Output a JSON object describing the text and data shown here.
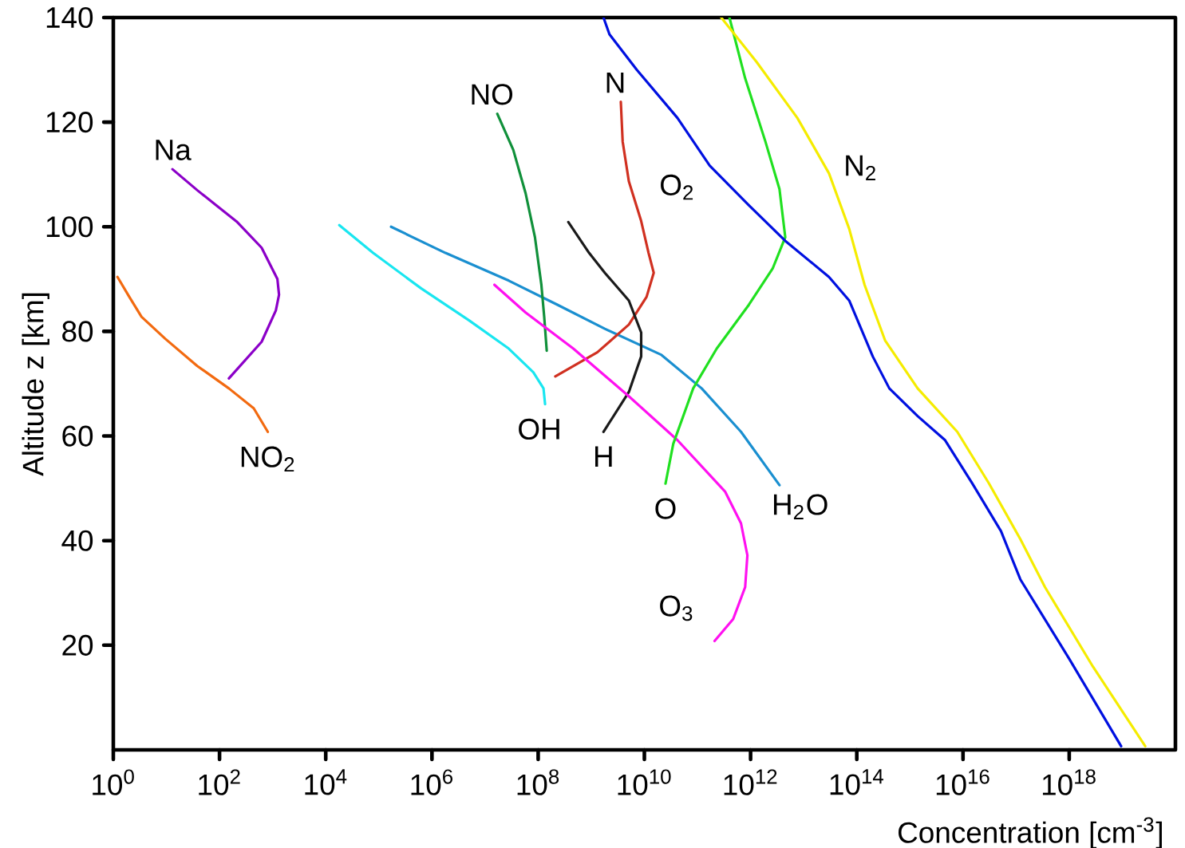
{
  "chart_data": {
    "type": "line",
    "xlabel": "Concentration [cm$^{-3}$]",
    "ylabel": "Altitude z [km]",
    "log": "x",
    "xlim": [
      1,
      1e+20
    ],
    "ylim": [
      0,
      140
    ],
    "xticks": [
      {
        "value": 1,
        "label": "10$^{0}$"
      },
      {
        "value": 100.0,
        "label": "10$^{2}$"
      },
      {
        "value": 10000.0,
        "label": "10$^{4}$"
      },
      {
        "value": 1000000.0,
        "label": "10$^{6}$"
      },
      {
        "value": 100000000.0,
        "label": "10$^{8}$"
      },
      {
        "value": 10000000000.0,
        "label": "10$^{10}$"
      },
      {
        "value": 1000000000000.0,
        "label": "10$^{12}$"
      },
      {
        "value": 100000000000000.0,
        "label": "10$^{14}$"
      },
      {
        "value": 1e+16,
        "label": "10$^{16}$"
      },
      {
        "value": 1e+18,
        "label": "10$^{18}$"
      }
    ],
    "yticks": [
      20,
      40,
      60,
      80,
      100,
      120,
      140
    ],
    "series": [
      {
        "name": "Na",
        "color": "#8b00c8",
        "x": [
          13,
          38,
          210,
          620,
          1230,
          1320,
          1150,
          620,
          150
        ],
        "values": [
          111,
          107,
          101,
          96,
          90,
          87,
          84,
          78,
          71
        ]
      },
      {
        "name": "NO$_{2}$",
        "color": "#f26a10",
        "x": [
          1.2,
          2,
          3.4,
          9.5,
          38,
          150,
          440,
          810
        ],
        "values": [
          90.4,
          86.6,
          82.8,
          78.6,
          73.4,
          69.1,
          65.3,
          60.8
        ]
      },
      {
        "name": "OH",
        "color": "#19e6f0",
        "x": [
          18000.0,
          78000.0,
          630000.0,
          5000000.0,
          28000000.0,
          81000000.0,
          126000000.0,
          135000000.0
        ],
        "values": [
          100.3,
          95,
          88.2,
          82.1,
          76.7,
          72.2,
          69.1,
          66.1
        ]
      },
      {
        "name": "H$_{2}$O",
        "color": "#1a8fd0",
        "x": [
          170000.0,
          1800000.0,
          28000000.0,
          230000000.0,
          1800000000.0,
          21000000000.0,
          120000000000.0,
          660000000000.0,
          3500000000000.0
        ],
        "values": [
          100,
          95,
          89.7,
          85.1,
          80.5,
          75.5,
          69.1,
          60.8,
          50.6
        ]
      },
      {
        "name": "NO",
        "color": "#10903a",
        "x": [
          17000000.0,
          34000000.0,
          58000000.0,
          87000000.0,
          115000000.0,
          130000000.0,
          145000000.0
        ],
        "values": [
          121.6,
          114.7,
          106.4,
          98,
          88.9,
          82.8,
          76.3
        ]
      },
      {
        "name": "N",
        "color": "#d03020",
        "x": [
          3600000000.0,
          3900000000.0,
          5100000000.0,
          8700000000.0,
          12000000000.0,
          15000000000.0,
          11000000000.0,
          5100000000.0,
          1300000000.0,
          210000000.0
        ],
        "values": [
          123.9,
          116.3,
          108.7,
          101.1,
          95,
          91.2,
          86.6,
          81.3,
          76,
          71.4
        ]
      },
      {
        "name": "H",
        "color": "#1a1a1a",
        "x": [
          370000000.0,
          910000000.0,
          1800000000.0,
          5100000000.0,
          8700000000.0,
          8700000000.0,
          5100000000.0,
          1700000000.0
        ],
        "values": [
          100.9,
          95,
          91.2,
          85.9,
          79.8,
          75.2,
          68.4,
          60.8
        ]
      },
      {
        "name": "O$_{3}$",
        "color": "#ff10f0",
        "x": [
          15000000.0,
          58000000.0,
          460000000.0,
          5100000000.0,
          42000000000.0,
          330000000000.0,
          660000000000.0,
          870000000000.0,
          790000000000.0,
          470000000000.0,
          210000000000.0
        ],
        "values": [
          88.9,
          83.6,
          76.7,
          67.6,
          59.2,
          49.4,
          43.3,
          37.2,
          31.1,
          25,
          20.8
        ]
      },
      {
        "name": "O",
        "color": "#20e020",
        "x": [
          400000000000.0,
          790000000000.0,
          1900000000000.0,
          3500000000000.0,
          4500000000000.0,
          2600000000000.0,
          930000000000.0,
          230000000000.0,
          83000000000.0,
          35000000000.0,
          25000000000.0
        ],
        "values": [
          140,
          128.4,
          116.3,
          107.2,
          98,
          92,
          85.1,
          76.7,
          69.1,
          58.5,
          50.9
        ]
      },
      {
        "name": "O$_{2}$",
        "color": "#0010e0",
        "x": [
          1700000000.0,
          2200000000.0,
          7200000000.0,
          42000000000.0,
          170000000000.0,
          930000000000.0,
          4500000000000.0,
          30000000000000.0,
          72000000000000.0,
          200000000000000.0,
          410000000000000.0,
          1400000000000000.0,
          4600000000000000.0,
          1.5e+16,
          5.2e+16,
          1.2e+17,
          1e+18,
          9.5e+18
        ],
        "values": [
          140,
          136.8,
          130,
          120.8,
          111.7,
          104.1,
          97.3,
          90.4,
          85.9,
          75.2,
          69.1,
          63.8,
          59.2,
          50.9,
          41.8,
          32.6,
          17.4,
          0.7
        ]
      },
      {
        "name": "N$_{2}$",
        "color": "#f5ec00",
        "x": [
          280000000000.0,
          1300000000000.0,
          7600000000000.0,
          30000000000000.0,
          72000000000000.0,
          140000000000000.0,
          340000000000000.0,
          1400000000000000.0,
          7800000000000000.0,
          3.1e+16,
          1.2e+17,
          3.5e+17,
          2.8e+18,
          2.7e+19
        ],
        "values": [
          140,
          131.5,
          120.8,
          110.2,
          99.6,
          88.9,
          78.3,
          69.1,
          60.8,
          50.9,
          40.3,
          31.1,
          15.9,
          0.7
        ]
      }
    ]
  }
}
